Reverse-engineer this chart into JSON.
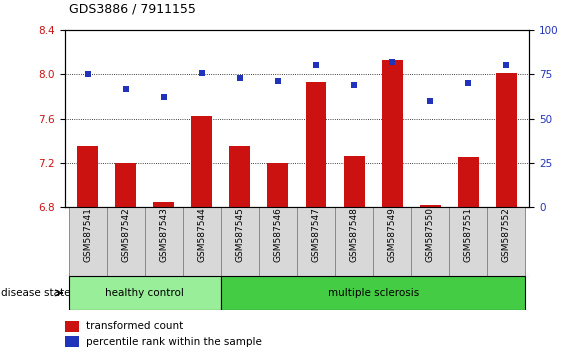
{
  "title": "GDS3886 / 7911155",
  "samples": [
    "GSM587541",
    "GSM587542",
    "GSM587543",
    "GSM587544",
    "GSM587545",
    "GSM587546",
    "GSM587547",
    "GSM587548",
    "GSM587549",
    "GSM587550",
    "GSM587551",
    "GSM587552"
  ],
  "bar_values": [
    7.35,
    7.2,
    6.85,
    7.62,
    7.35,
    7.2,
    7.93,
    7.26,
    8.13,
    6.82,
    7.25,
    8.01
  ],
  "percentile_values": [
    75,
    67,
    62,
    76,
    73,
    71,
    80,
    69,
    82,
    60,
    70,
    80
  ],
  "ylim_left": [
    6.8,
    8.4
  ],
  "ylim_right": [
    0,
    100
  ],
  "yticks_left": [
    6.8,
    7.2,
    7.6,
    8.0,
    8.4
  ],
  "yticks_right": [
    0,
    25,
    50,
    75,
    100
  ],
  "bar_color": "#cc1111",
  "percentile_color": "#2233bb",
  "healthy_control_count": 4,
  "healthy_color": "#99ee99",
  "ms_color": "#44cc44",
  "disease_label_healthy": "healthy control",
  "disease_label_ms": "multiple sclerosis",
  "legend_bar": "transformed count",
  "legend_percentile": "percentile rank within the sample",
  "disease_state_label": "disease state",
  "background_color": "#ffffff"
}
